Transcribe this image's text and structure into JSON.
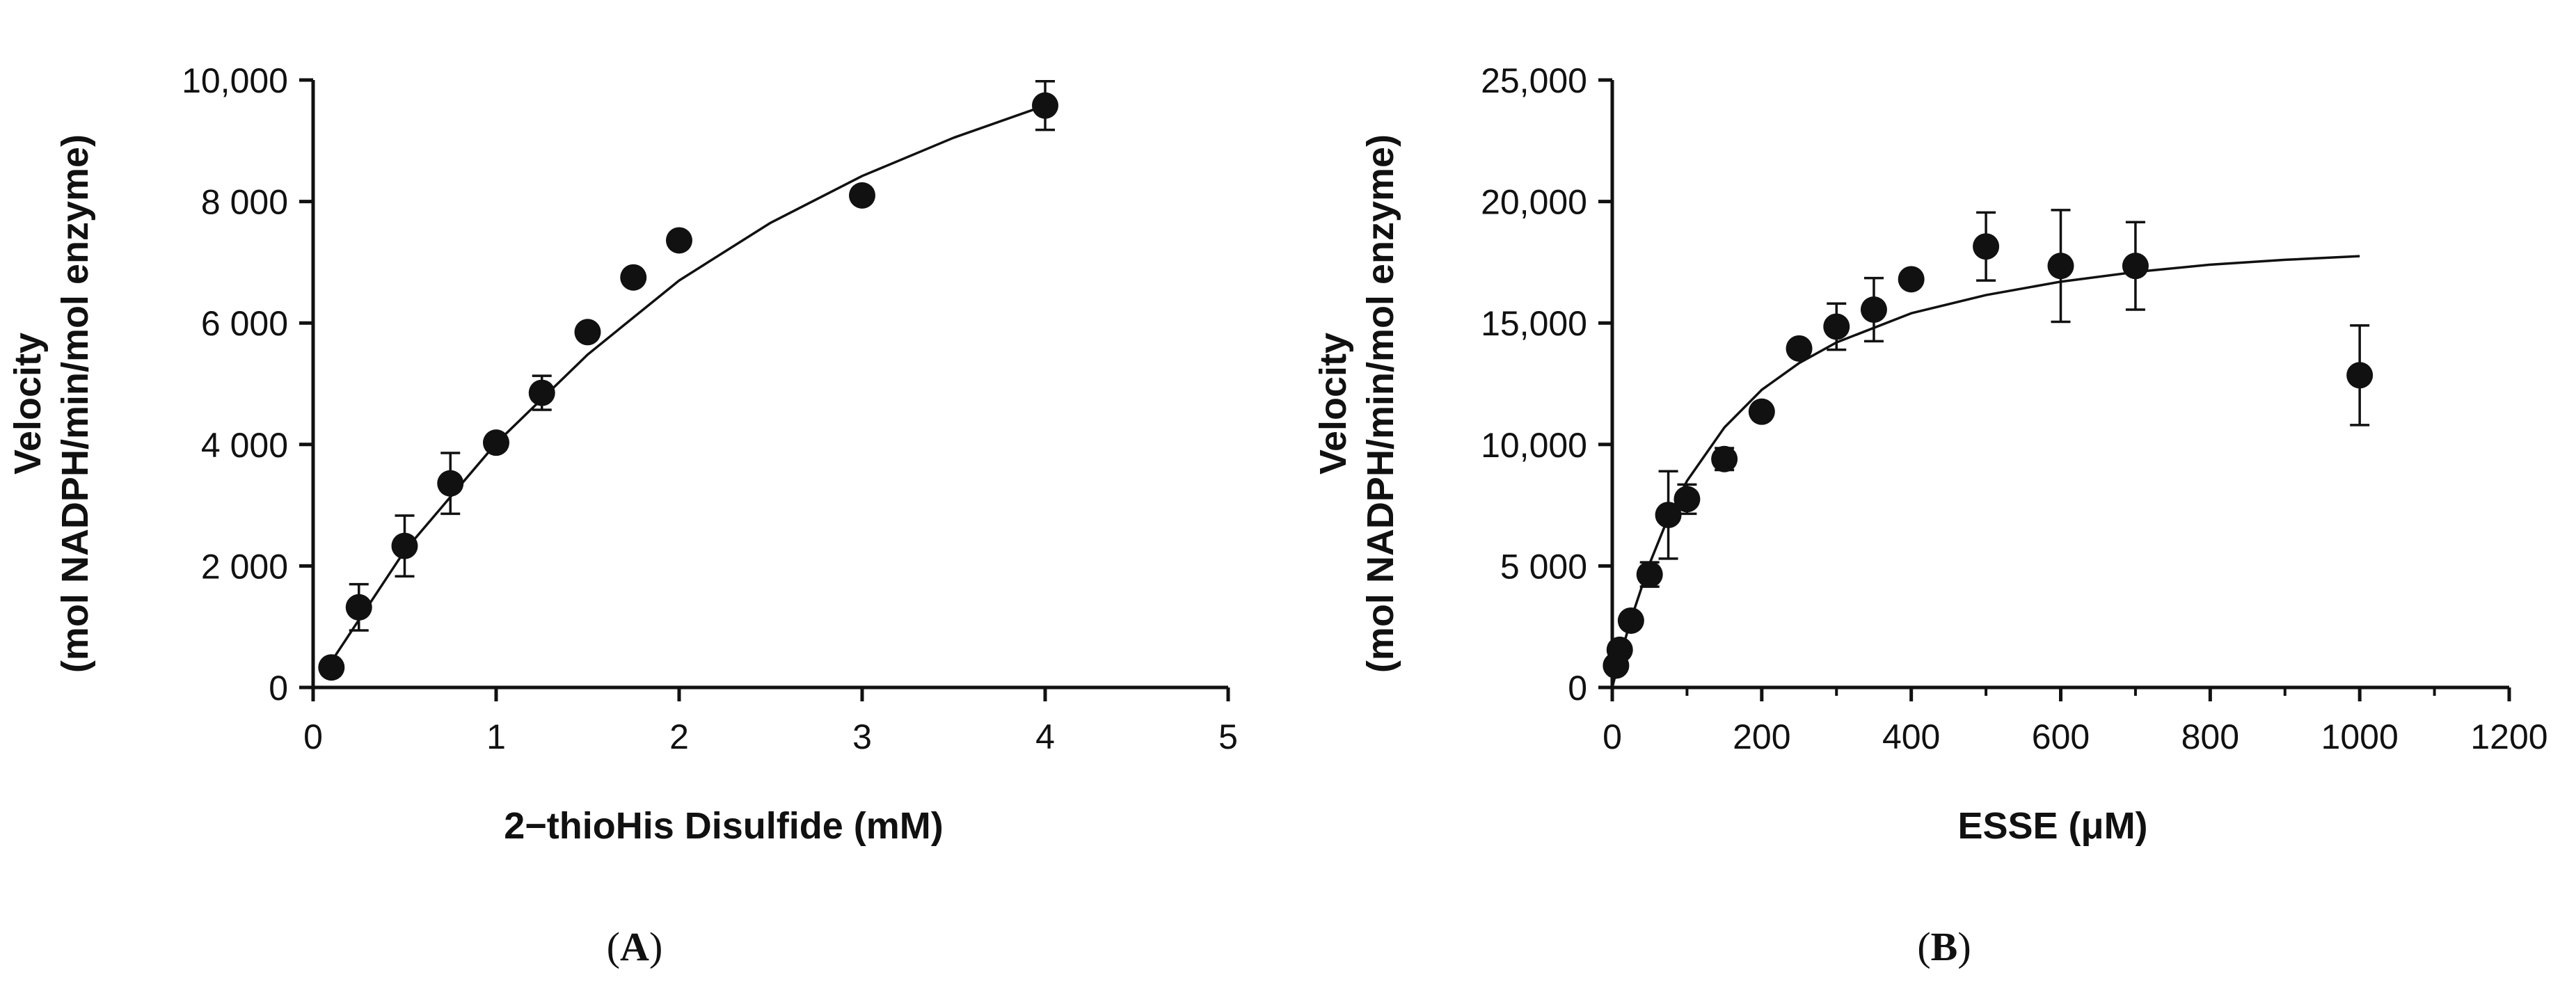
{
  "chart_data": [
    {
      "type": "scatter",
      "panel_label": "A",
      "xlabel": "2−thioHis Disulfide (mM)",
      "ylabel_line1": "Velocity",
      "ylabel_line2": "(mol NADPH/min/mol enzyme)",
      "xlim": [
        0,
        5
      ],
      "ylim": [
        0,
        10000
      ],
      "x_ticks": [
        0,
        1,
        2,
        3,
        4,
        5
      ],
      "x_tick_labels": [
        "0",
        "1",
        "2",
        "3",
        "4",
        "5"
      ],
      "y_ticks": [
        0,
        2000,
        4000,
        6000,
        8000,
        10000
      ],
      "y_tick_labels": [
        "0",
        "2 000",
        "4 000",
        "6 000",
        "8 000",
        "10,000"
      ],
      "grid": false,
      "series": [
        {
          "name": "data",
          "x": [
            0.1,
            0.25,
            0.5,
            0.75,
            1.0,
            1.25,
            1.5,
            1.75,
            2.0,
            3.0,
            4.0
          ],
          "y": [
            330,
            1320,
            2330,
            3360,
            4030,
            4850,
            5850,
            6750,
            7360,
            8100,
            9580
          ],
          "error": [
            0,
            380,
            500,
            500,
            0,
            280,
            0,
            0,
            0,
            0,
            400
          ]
        }
      ],
      "fit": {
        "x": [
          0.05,
          0.5,
          1.0,
          1.5,
          2.0,
          2.5,
          3.0,
          3.5,
          4.0
        ],
        "y": [
          200,
          2250,
          4020,
          5480,
          6700,
          7650,
          8420,
          9050,
          9580
        ]
      }
    },
    {
      "type": "scatter",
      "panel_label": "B",
      "xlabel": "ESSE (μM)",
      "ylabel_line1": "Velocity",
      "ylabel_line2": "(mol NADPH/min/mol enzyme)",
      "xlim": [
        0,
        1200
      ],
      "ylim": [
        0,
        25000
      ],
      "x_ticks": [
        0,
        200,
        400,
        600,
        800,
        1000,
        1200
      ],
      "x_tick_labels": [
        "0",
        "200",
        "400",
        "600",
        "800",
        "1000",
        "1200"
      ],
      "y_ticks": [
        0,
        5000,
        10000,
        15000,
        20000,
        25000
      ],
      "y_tick_labels": [
        "0",
        "5 000",
        "10,000",
        "15,000",
        "20,000",
        "25,000"
      ],
      "grid": false,
      "series": [
        {
          "name": "data",
          "x": [
            5,
            10,
            25,
            50,
            75,
            100,
            150,
            200,
            250,
            300,
            350,
            400,
            500,
            600,
            700,
            1000
          ],
          "y": [
            900,
            1550,
            2750,
            4650,
            7100,
            7750,
            9400,
            11350,
            13950,
            14850,
            15550,
            16800,
            18150,
            17350,
            17350,
            12850
          ],
          "error": [
            0,
            0,
            0,
            500,
            1800,
            600,
            450,
            0,
            0,
            950,
            1300,
            0,
            1400,
            2300,
            1800,
            2050
          ]
        }
      ],
      "fit": {
        "x": [
          0,
          10,
          25,
          50,
          75,
          100,
          150,
          200,
          250,
          300,
          400,
          500,
          600,
          700,
          800,
          900,
          1000
        ],
        "y": [
          0,
          1200,
          2800,
          5100,
          7000,
          8500,
          10700,
          12250,
          13350,
          14200,
          15400,
          16150,
          16700,
          17100,
          17400,
          17600,
          17750
        ]
      }
    }
  ]
}
